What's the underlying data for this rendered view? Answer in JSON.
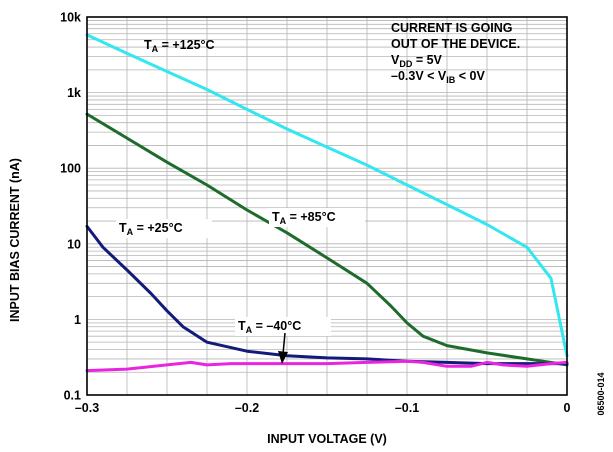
{
  "chart_data": {
    "type": "line",
    "xlabel": "INPUT VOLTAGE (V)",
    "ylabel": "INPUT BIAS CURRENT (nA)",
    "xlim": [
      -0.3,
      0
    ],
    "ylim": [
      0.1,
      10000
    ],
    "y_scale": "log",
    "x_ticks": [
      {
        "value": -0.3,
        "label": "–0.3"
      },
      {
        "value": -0.2,
        "label": "–0.2"
      },
      {
        "value": -0.1,
        "label": "–0.1"
      },
      {
        "value": 0,
        "label": "0"
      }
    ],
    "y_ticks": [
      {
        "value": 0.1,
        "label": "0.1"
      },
      {
        "value": 1,
        "label": "1"
      },
      {
        "value": 10,
        "label": "10"
      },
      {
        "value": 100,
        "label": "100"
      },
      {
        "value": 1000,
        "label": "1k"
      },
      {
        "value": 10000,
        "label": "10k"
      }
    ],
    "grid": true,
    "annotation": [
      {
        "text": "CURRENT IS GOING"
      },
      {
        "text": "OUT OF THE DEVICE."
      },
      {
        "text": "V",
        "sub": "DD",
        "suffix": " = 5V"
      },
      {
        "text": "–0.3V < V",
        "sub": "IB",
        "suffix": " < 0V"
      }
    ],
    "figure_id": "06500-014",
    "series": [
      {
        "name": "+125°C",
        "label_main": "T",
        "label_sub": "A",
        "label_rest": " = +125°C",
        "color": "#33e6f0",
        "x": [
          -0.3,
          -0.275,
          -0.25,
          -0.225,
          -0.2,
          -0.175,
          -0.15,
          -0.125,
          -0.1,
          -0.075,
          -0.05,
          -0.025,
          -0.01,
          0
        ],
        "y": [
          5800,
          3300,
          1900,
          1100,
          600,
          330,
          190,
          110,
          60,
          33,
          18,
          9,
          3.5,
          0.33
        ]
      },
      {
        "name": "+85°C",
        "label_main": "T",
        "label_sub": "A",
        "label_rest": " = +85°C",
        "color": "#1e6b2c",
        "x": [
          -0.3,
          -0.275,
          -0.25,
          -0.225,
          -0.2,
          -0.175,
          -0.15,
          -0.125,
          -0.11,
          -0.1,
          -0.09,
          -0.075,
          -0.05,
          -0.025,
          0
        ],
        "y": [
          520,
          250,
          120,
          60,
          28,
          14,
          6.5,
          3,
          1.5,
          0.9,
          0.6,
          0.45,
          0.36,
          0.3,
          0.25
        ]
      },
      {
        "name": "+25°C",
        "label_main": "T",
        "label_sub": "A",
        "label_rest": " = +25°C",
        "color": "#141a7a",
        "x": [
          -0.3,
          -0.29,
          -0.275,
          -0.26,
          -0.25,
          -0.24,
          -0.225,
          -0.2,
          -0.175,
          -0.15,
          -0.125,
          -0.1,
          -0.075,
          -0.05,
          -0.025,
          0
        ],
        "y": [
          17,
          9,
          4.5,
          2.2,
          1.3,
          0.8,
          0.5,
          0.38,
          0.33,
          0.31,
          0.3,
          0.28,
          0.27,
          0.26,
          0.26,
          0.26
        ]
      },
      {
        "name": "–40°C",
        "label_main": "T",
        "label_sub": "A",
        "label_rest": " = –40°C",
        "color": "#e825e0",
        "x": [
          -0.3,
          -0.275,
          -0.25,
          -0.235,
          -0.225,
          -0.21,
          -0.2,
          -0.175,
          -0.15,
          -0.125,
          -0.1,
          -0.09,
          -0.075,
          -0.06,
          -0.05,
          -0.04,
          -0.025,
          -0.01,
          0
        ],
        "y": [
          0.21,
          0.22,
          0.25,
          0.27,
          0.25,
          0.26,
          0.26,
          0.26,
          0.26,
          0.27,
          0.28,
          0.27,
          0.24,
          0.24,
          0.27,
          0.25,
          0.24,
          0.26,
          0.27
        ]
      }
    ]
  }
}
